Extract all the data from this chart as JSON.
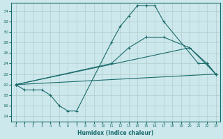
{
  "xlabel": "Humidex (Indice chaleur)",
  "xlim": [
    -0.5,
    23.5
  ],
  "ylim": [
    13,
    35.5
  ],
  "yticks": [
    14,
    16,
    18,
    20,
    22,
    24,
    26,
    28,
    30,
    32,
    34
  ],
  "xticks": [
    0,
    1,
    2,
    3,
    4,
    5,
    6,
    7,
    8,
    9,
    10,
    11,
    12,
    13,
    14,
    15,
    16,
    17,
    18,
    19,
    20,
    21,
    22,
    23
  ],
  "bg_color": "#cde8ec",
  "line_color": "#1a6b6b",
  "grid_color": "#b0cccc",
  "curves": [
    {
      "x": [
        0,
        1,
        2,
        3,
        4,
        5,
        6,
        7,
        11,
        12,
        13,
        14,
        15,
        16,
        17,
        21,
        22,
        23
      ],
      "y": [
        20,
        19,
        19,
        19,
        18,
        16,
        15,
        15,
        28,
        31,
        33,
        35,
        35,
        35,
        32,
        24,
        24,
        22
      ]
    },
    {
      "x": [
        0,
        11,
        13,
        15,
        17,
        20,
        22,
        23
      ],
      "y": [
        20,
        24,
        27,
        29,
        29,
        27,
        24,
        22
      ]
    },
    {
      "x": [
        0,
        23
      ],
      "y": [
        20,
        22
      ]
    },
    {
      "x": [
        0,
        20,
        23
      ],
      "y": [
        20,
        27,
        22
      ]
    }
  ]
}
